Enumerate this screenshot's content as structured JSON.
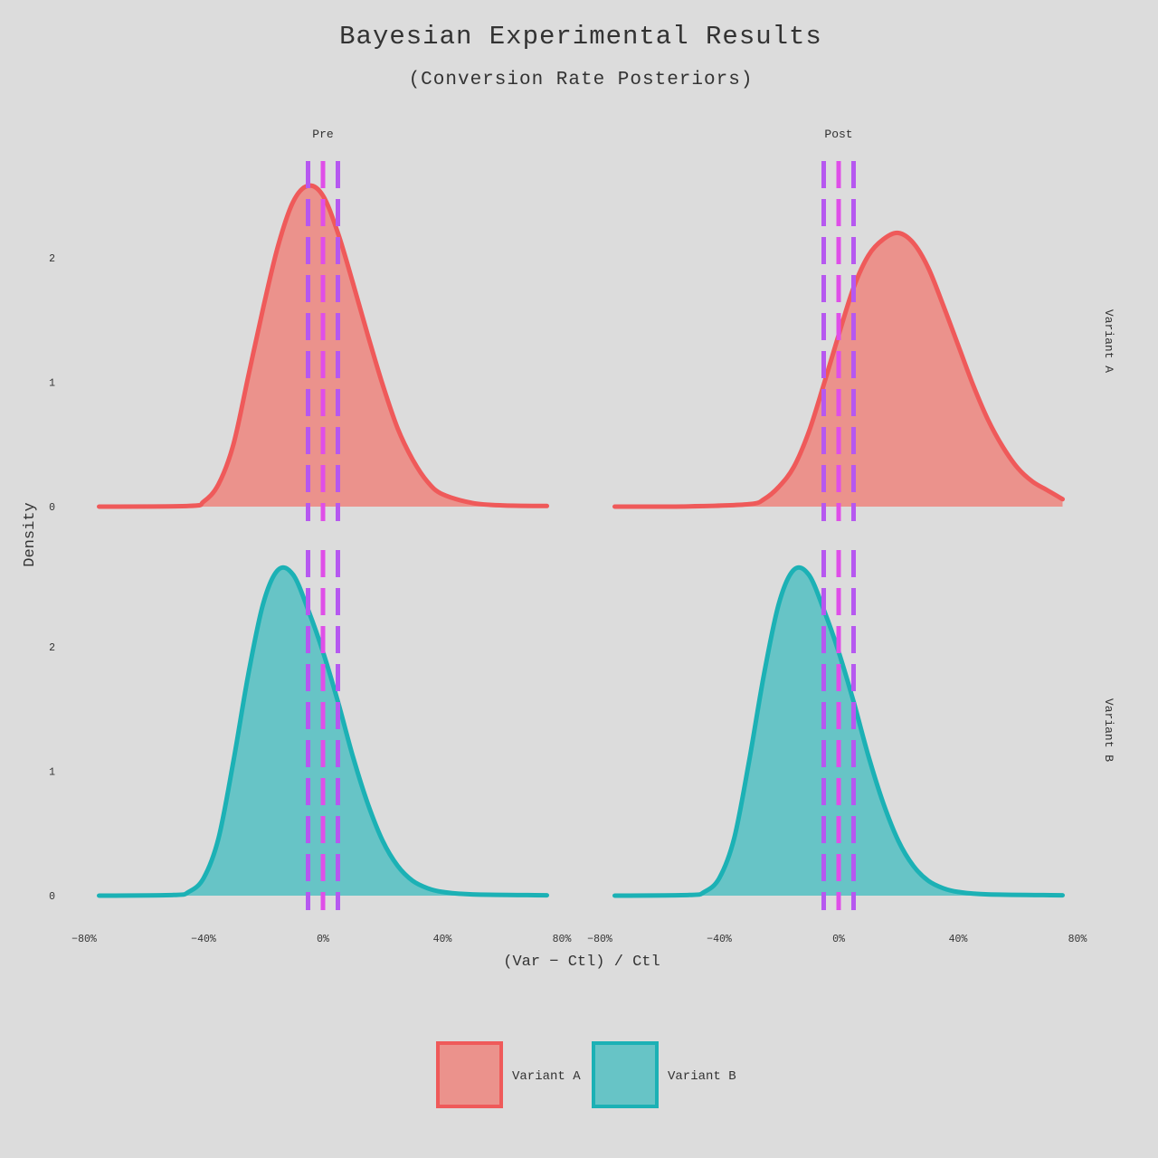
{
  "chart_data": {
    "type": "area",
    "title": "Bayesian Experimental Results",
    "subtitle": "(Conversion Rate Posteriors)",
    "xlabel": "(Var − Ctl) / Ctl",
    "ylabel": "Density",
    "xlim": [
      -0.8,
      0.8
    ],
    "ylim": [
      0,
      2.7
    ],
    "x_ticks": [
      -0.8,
      -0.4,
      0,
      0.4,
      0.8
    ],
    "x_tick_labels": [
      "−80%",
      "−40%",
      "0%",
      "40%",
      "80%"
    ],
    "y_ticks": [
      0,
      1,
      2
    ],
    "y_tick_labels": [
      "0",
      "1",
      "2"
    ],
    "columns": [
      "Pre",
      "Post"
    ],
    "rows": [
      "Variant A",
      "Variant B"
    ],
    "reference_lines": [
      {
        "x": -0.05,
        "color": "#b658f0"
      },
      {
        "x": 0.0,
        "color": "#df4fe8"
      },
      {
        "x": 0.05,
        "color": "#b658f0"
      }
    ],
    "colors": {
      "Variant A": {
        "line": "#ef5a5a",
        "fill": "#eb928c"
      },
      "Variant B": {
        "line": "#1cb1b5",
        "fill": "#67c4c6"
      }
    },
    "series": [
      {
        "name": "Variant A",
        "column": "Pre",
        "x_range": [
          -0.75,
          0.75
        ],
        "points": [
          [
            -0.75,
            0
          ],
          [
            -0.45,
            0.005
          ],
          [
            -0.4,
            0.04
          ],
          [
            -0.35,
            0.18
          ],
          [
            -0.3,
            0.5
          ],
          [
            -0.25,
            1.05
          ],
          [
            -0.2,
            1.6
          ],
          [
            -0.15,
            2.1
          ],
          [
            -0.1,
            2.45
          ],
          [
            -0.05,
            2.58
          ],
          [
            0,
            2.5
          ],
          [
            0.05,
            2.2
          ],
          [
            0.1,
            1.8
          ],
          [
            0.15,
            1.38
          ],
          [
            0.2,
            0.98
          ],
          [
            0.25,
            0.63
          ],
          [
            0.3,
            0.38
          ],
          [
            0.35,
            0.2
          ],
          [
            0.4,
            0.1
          ],
          [
            0.5,
            0.03
          ],
          [
            0.6,
            0.01
          ],
          [
            0.75,
            0.005
          ]
        ]
      },
      {
        "name": "Variant A",
        "column": "Post",
        "x_range": [
          -0.75,
          0.75
        ],
        "points": [
          [
            -0.75,
            0
          ],
          [
            -0.5,
            0.002
          ],
          [
            -0.3,
            0.02
          ],
          [
            -0.25,
            0.06
          ],
          [
            -0.2,
            0.16
          ],
          [
            -0.15,
            0.32
          ],
          [
            -0.1,
            0.6
          ],
          [
            -0.05,
            0.98
          ],
          [
            0,
            1.38
          ],
          [
            0.05,
            1.76
          ],
          [
            0.1,
            2.02
          ],
          [
            0.15,
            2.15
          ],
          [
            0.2,
            2.2
          ],
          [
            0.25,
            2.12
          ],
          [
            0.3,
            1.92
          ],
          [
            0.35,
            1.62
          ],
          [
            0.4,
            1.3
          ],
          [
            0.45,
            0.98
          ],
          [
            0.5,
            0.7
          ],
          [
            0.55,
            0.48
          ],
          [
            0.6,
            0.31
          ],
          [
            0.65,
            0.2
          ],
          [
            0.7,
            0.13
          ],
          [
            0.75,
            0.06
          ]
        ]
      },
      {
        "name": "Variant B",
        "column": "Pre",
        "x_range": [
          -0.75,
          0.75
        ],
        "points": [
          [
            -0.75,
            0
          ],
          [
            -0.5,
            0.005
          ],
          [
            -0.45,
            0.03
          ],
          [
            -0.4,
            0.14
          ],
          [
            -0.35,
            0.46
          ],
          [
            -0.3,
            1.08
          ],
          [
            -0.25,
            1.78
          ],
          [
            -0.2,
            2.35
          ],
          [
            -0.15,
            2.62
          ],
          [
            -0.1,
            2.58
          ],
          [
            -0.05,
            2.3
          ],
          [
            0,
            1.96
          ],
          [
            0.05,
            1.56
          ],
          [
            0.1,
            1.12
          ],
          [
            0.15,
            0.74
          ],
          [
            0.2,
            0.44
          ],
          [
            0.25,
            0.24
          ],
          [
            0.3,
            0.12
          ],
          [
            0.35,
            0.06
          ],
          [
            0.4,
            0.03
          ],
          [
            0.5,
            0.01
          ],
          [
            0.75,
            0.003
          ]
        ]
      },
      {
        "name": "Variant B",
        "column": "Post",
        "x_range": [
          -0.75,
          0.75
        ],
        "points": [
          [
            -0.75,
            0
          ],
          [
            -0.5,
            0.005
          ],
          [
            -0.45,
            0.03
          ],
          [
            -0.4,
            0.14
          ],
          [
            -0.35,
            0.46
          ],
          [
            -0.3,
            1.08
          ],
          [
            -0.25,
            1.78
          ],
          [
            -0.2,
            2.35
          ],
          [
            -0.15,
            2.62
          ],
          [
            -0.1,
            2.58
          ],
          [
            -0.05,
            2.3
          ],
          [
            0,
            1.96
          ],
          [
            0.05,
            1.56
          ],
          [
            0.1,
            1.12
          ],
          [
            0.15,
            0.74
          ],
          [
            0.2,
            0.44
          ],
          [
            0.25,
            0.24
          ],
          [
            0.3,
            0.12
          ],
          [
            0.35,
            0.06
          ],
          [
            0.4,
            0.03
          ],
          [
            0.5,
            0.01
          ],
          [
            0.75,
            0.003
          ]
        ]
      }
    ],
    "legend": {
      "position": "bottom",
      "items": [
        {
          "label": "Variant A",
          "color_key": "Variant A"
        },
        {
          "label": "Variant B",
          "color_key": "Variant B"
        }
      ]
    }
  }
}
